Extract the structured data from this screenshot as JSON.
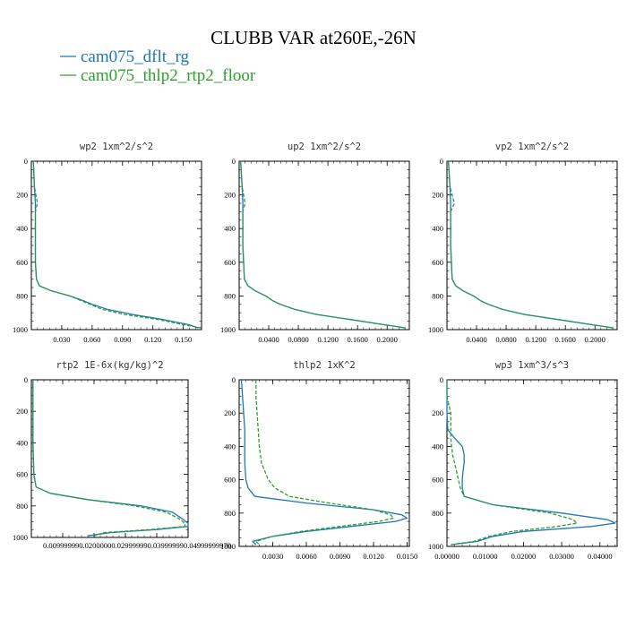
{
  "title": "CLUBB VAR at260E,-26N",
  "legend": [
    {
      "name": "cam075_dflt_rg",
      "color": "#1f77b4"
    },
    {
      "name": "cam075_thlp2_rtp2_floor",
      "color": "#2ca02c"
    }
  ],
  "chart_data": [
    {
      "type": "line",
      "title": "wp2   1xm^2/s^2",
      "xlim": [
        0,
        0.168
      ],
      "ylim": [
        1000,
        0
      ],
      "xticks": [
        "0.030",
        "0.060",
        "0.090",
        "0.120",
        "0.150"
      ],
      "xtick_values": [
        0.03,
        0.06,
        0.09,
        0.12,
        0.15
      ],
      "yticks": [
        0,
        200,
        400,
        600,
        800,
        1000
      ],
      "y": [
        0,
        150,
        250,
        300,
        400,
        500,
        600,
        700,
        740,
        770,
        800,
        830,
        850,
        880,
        910,
        940,
        970,
        990
      ],
      "series": [
        {
          "name": "cam075_dflt_rg",
          "values": [
            0.002,
            0.003,
            0.004,
            0.004,
            0.004,
            0.004,
            0.004,
            0.005,
            0.008,
            0.02,
            0.038,
            0.052,
            0.06,
            0.075,
            0.1,
            0.13,
            0.155,
            0.165
          ]
        },
        {
          "name": "cam075_thlp2_rtp2_floor",
          "values": [
            0.002,
            0.003,
            0.006,
            0.004,
            0.004,
            0.004,
            0.004,
            0.005,
            0.008,
            0.02,
            0.038,
            0.05,
            0.058,
            0.07,
            0.092,
            0.125,
            0.15,
            0.168
          ]
        }
      ]
    },
    {
      "type": "line",
      "title": "up2   1xm^2/s^2",
      "xlim": [
        0,
        0.23
      ],
      "ylim": [
        1000,
        0
      ],
      "xticks": [
        "0.0400",
        "0.0800",
        "0.1200",
        "0.1600",
        "0.2000"
      ],
      "xtick_values": [
        0.04,
        0.08,
        0.12,
        0.16,
        0.2
      ],
      "yticks": [
        0,
        200,
        400,
        600,
        800,
        1000
      ],
      "y": [
        0,
        150,
        250,
        300,
        400,
        500,
        600,
        700,
        740,
        770,
        800,
        830,
        850,
        880,
        910,
        940,
        970,
        990
      ],
      "series": [
        {
          "name": "cam075_dflt_rg",
          "values": [
            0.002,
            0.004,
            0.005,
            0.005,
            0.005,
            0.005,
            0.006,
            0.007,
            0.012,
            0.022,
            0.036,
            0.046,
            0.056,
            0.075,
            0.105,
            0.15,
            0.195,
            0.225
          ]
        },
        {
          "name": "cam075_thlp2_rtp2_floor",
          "values": [
            0.002,
            0.004,
            0.008,
            0.005,
            0.005,
            0.005,
            0.006,
            0.007,
            0.012,
            0.022,
            0.036,
            0.046,
            0.056,
            0.075,
            0.105,
            0.15,
            0.195,
            0.225
          ]
        }
      ]
    },
    {
      "type": "line",
      "title": "vp2   1xm^2/s^2",
      "xlim": [
        0,
        0.23
      ],
      "ylim": [
        1000,
        0
      ],
      "xticks": [
        "0.0400",
        "0.0800",
        "0.1200",
        "0.1600",
        "0.2000"
      ],
      "xtick_values": [
        0.04,
        0.08,
        0.12,
        0.16,
        0.2
      ],
      "yticks": [
        0,
        200,
        400,
        600,
        800,
        1000
      ],
      "y": [
        0,
        150,
        250,
        300,
        400,
        500,
        600,
        700,
        740,
        770,
        800,
        830,
        850,
        880,
        910,
        940,
        970,
        990
      ],
      "series": [
        {
          "name": "cam075_dflt_rg",
          "values": [
            0.002,
            0.004,
            0.005,
            0.005,
            0.005,
            0.005,
            0.006,
            0.007,
            0.012,
            0.022,
            0.036,
            0.046,
            0.056,
            0.075,
            0.105,
            0.15,
            0.195,
            0.225
          ]
        },
        {
          "name": "cam075_thlp2_rtp2_floor",
          "values": [
            0.002,
            0.004,
            0.01,
            0.005,
            0.005,
            0.005,
            0.006,
            0.007,
            0.012,
            0.022,
            0.036,
            0.046,
            0.056,
            0.075,
            0.105,
            0.15,
            0.195,
            0.225
          ]
        }
      ]
    },
    {
      "type": "line",
      "title": "rtp2   1E-6x(kg/kg)^2",
      "xlim": [
        0,
        0.05
      ],
      "ylim": [
        1000,
        0
      ],
      "xticks": [
        "0.00999999",
        "0.02000000",
        "0.02999999",
        "0.03999999",
        "0.04999999"
      ],
      "xticks_shown": "0.009999990.02000000.029999990.039999990.04999999970",
      "xtick_values": [
        0.01,
        0.02,
        0.03,
        0.04,
        0.05
      ],
      "yticks": [
        0,
        200,
        400,
        600,
        800,
        1000
      ],
      "y": [
        0,
        200,
        400,
        600,
        680,
        720,
        760,
        800,
        840,
        880,
        910,
        930,
        950,
        970,
        990
      ],
      "series": [
        {
          "name": "cam075_dflt_rg",
          "values": [
            0.0005,
            0.0005,
            0.0005,
            0.0008,
            0.0015,
            0.006,
            0.018,
            0.035,
            0.045,
            0.048,
            0.05,
            0.05,
            0.04,
            0.025,
            0.018
          ]
        },
        {
          "name": "cam075_thlp2_rtp2_floor",
          "values": [
            0.0005,
            0.0005,
            0.0005,
            0.0008,
            0.0015,
            0.006,
            0.018,
            0.033,
            0.043,
            0.047,
            0.049,
            0.049,
            0.038,
            0.023,
            0.02
          ]
        }
      ]
    },
    {
      "type": "line",
      "title": "thlp2   1xK^2",
      "xlim": [
        0,
        0.0152
      ],
      "ylim": [
        1000,
        0
      ],
      "xticks": [
        "0.0030",
        "0.0060",
        "0.0090",
        "0.0120",
        "0.0150"
      ],
      "xtick_values": [
        0.003,
        0.006,
        0.009,
        0.012,
        0.015
      ],
      "yticks": [
        0,
        200,
        400,
        600,
        800,
        1000
      ],
      "y": [
        0,
        100,
        200,
        300,
        400,
        500,
        600,
        650,
        700,
        740,
        780,
        810,
        830,
        850,
        880,
        910,
        940,
        970,
        990
      ],
      "series": [
        {
          "name": "cam075_dflt_rg",
          "values": [
            0.0002,
            0.0003,
            0.0004,
            0.0005,
            0.0005,
            0.0005,
            0.0006,
            0.0008,
            0.0014,
            0.006,
            0.012,
            0.0145,
            0.015,
            0.014,
            0.01,
            0.006,
            0.003,
            0.0012,
            0.0015
          ]
        },
        {
          "name": "cam075_thlp2_rtp2_floor",
          "values": [
            0.0015,
            0.0015,
            0.0016,
            0.0017,
            0.0018,
            0.002,
            0.0026,
            0.0032,
            0.0045,
            0.008,
            0.012,
            0.0135,
            0.0138,
            0.0125,
            0.009,
            0.0055,
            0.003,
            0.0015,
            0.0018
          ]
        }
      ]
    },
    {
      "type": "line",
      "title": "wp3   1xm^3/s^3",
      "xlim": [
        0,
        0.0445
      ],
      "ylim": [
        1000,
        0
      ],
      "xticks": [
        "0.00000",
        "0.01000",
        "0.02000",
        "0.03000",
        "0.04000"
      ],
      "xtick_values": [
        0,
        0.01,
        0.02,
        0.03,
        0.04
      ],
      "yticks": [
        0,
        200,
        400,
        600,
        800,
        1000
      ],
      "y": [
        0,
        100,
        200,
        300,
        350,
        400,
        450,
        500,
        550,
        600,
        650,
        700,
        750,
        800,
        840,
        860,
        880,
        910,
        940,
        970,
        990
      ],
      "series": [
        {
          "name": "cam075_dflt_rg",
          "values": [
            0.0,
            0.0,
            0.0,
            0.0002,
            0.002,
            0.004,
            0.0045,
            0.0045,
            0.0042,
            0.004,
            0.004,
            0.0045,
            0.012,
            0.03,
            0.042,
            0.044,
            0.038,
            0.02,
            0.012,
            0.008,
            0.001
          ]
        },
        {
          "name": "cam075_thlp2_rtp2_floor",
          "values": [
            0.0,
            0.0,
            0.001,
            0.001,
            0.001,
            0.0012,
            0.0015,
            0.002,
            0.0025,
            0.003,
            0.0035,
            0.0045,
            0.012,
            0.027,
            0.033,
            0.034,
            0.029,
            0.017,
            0.011,
            0.007,
            0.001
          ]
        }
      ]
    }
  ]
}
